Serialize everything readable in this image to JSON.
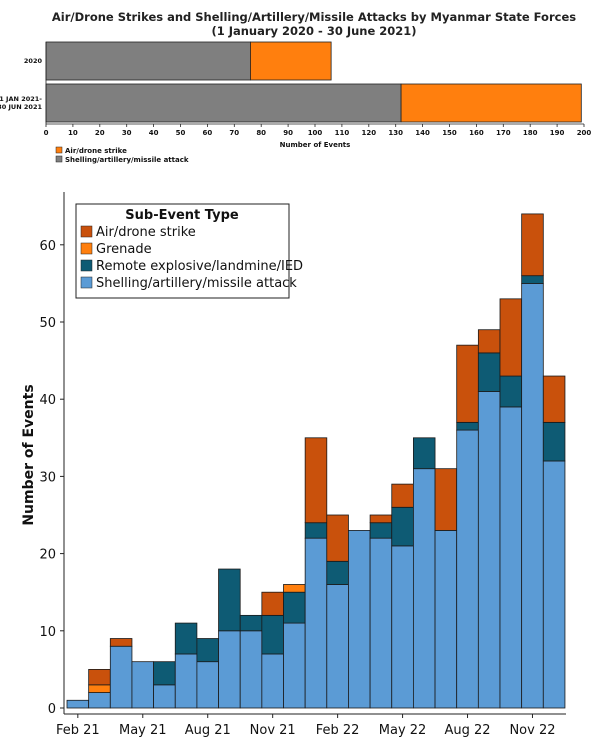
{
  "chart_data": [
    {
      "type": "bar",
      "orientation": "horizontal",
      "stacked": true,
      "title_line1": "Air/Drone Strikes and Shelling/Artillery/Missile Attacks by Myanmar State Forces",
      "title_line2": "(1 January 2020 - 30 June 2021)",
      "xlabel": "Number of Events",
      "xlim": [
        0,
        200
      ],
      "xticks": [
        0,
        10,
        20,
        30,
        40,
        50,
        60,
        70,
        80,
        90,
        100,
        110,
        120,
        130,
        140,
        150,
        160,
        170,
        180,
        190,
        200
      ],
      "categories": [
        "2020",
        "1 JAN 2021-30 JUN 2021"
      ],
      "category_lines": [
        [
          "2020"
        ],
        [
          "1 JAN 2021-",
          "30 JUN 2021"
        ]
      ],
      "series": [
        {
          "name": "Shelling/artillery/missile attack",
          "color": "#7f7f7f",
          "values": [
            76,
            132
          ]
        },
        {
          "name": "Air/drone strike",
          "color": "#ff7f0e",
          "values": [
            30,
            67
          ]
        }
      ],
      "legend": [
        "Air/drone strike",
        "Shelling/artillery/missile attack"
      ],
      "legend_position": "bottom-left"
    },
    {
      "type": "bar",
      "stacked": true,
      "ylabel": "Number of Events",
      "ylim": [
        0,
        68
      ],
      "yticks": [
        0,
        10,
        20,
        30,
        40,
        50,
        60
      ],
      "x_tick_labels": [
        "Feb 21",
        "May 21",
        "Aug 21",
        "Nov 21",
        "Feb 22",
        "May 22",
        "Aug 22",
        "Nov 22"
      ],
      "x_tick_month_index": [
        0,
        3,
        6,
        9,
        12,
        15,
        18,
        21
      ],
      "months": [
        "Feb 21",
        "Mar 21",
        "Apr 21",
        "May 21",
        "Jun 21",
        "Jul 21",
        "Aug 21",
        "Sep 21",
        "Oct 21",
        "Nov 21",
        "Dec 21",
        "Jan 22",
        "Feb 22",
        "Mar 22",
        "Apr 22",
        "May 22",
        "Jun 22",
        "Jul 22",
        "Aug 22",
        "Sep 22",
        "Oct 22",
        "Nov 22",
        "Dec 22"
      ],
      "legend_title": "Sub-Event Type",
      "legend_position": "top-left",
      "series": [
        {
          "name": "Shelling/artillery/missile attack",
          "color": "#5b9bd5",
          "values": [
            1,
            2,
            8,
            6,
            3,
            7,
            6,
            10,
            10,
            7,
            11,
            22,
            16,
            23,
            22,
            21,
            31,
            23,
            36,
            41,
            39,
            55,
            32
          ]
        },
        {
          "name": "Remote explosive/landmine/IED",
          "color": "#0e5b74",
          "values": [
            0,
            0,
            0,
            0,
            3,
            4,
            3,
            8,
            2,
            5,
            4,
            2,
            3,
            0,
            2,
            5,
            4,
            0,
            1,
            5,
            4,
            1,
            5
          ]
        },
        {
          "name": "Grenade",
          "color": "#ff7f0e",
          "values": [
            0,
            1,
            0,
            0,
            0,
            0,
            0,
            0,
            0,
            0,
            1,
            0,
            0,
            0,
            0,
            0,
            0,
            0,
            0,
            0,
            0,
            0,
            0
          ]
        },
        {
          "name": "Air/drone strike",
          "color": "#c9510c",
          "values": [
            0,
            2,
            1,
            0,
            0,
            0,
            0,
            0,
            0,
            3,
            0,
            11,
            6,
            0,
            1,
            3,
            0,
            8,
            10,
            3,
            10,
            8,
            6
          ]
        }
      ],
      "legend": [
        "Air/drone strike",
        "Grenade",
        "Remote explosive/landmine/IED",
        "Shelling/artillery/missile attack"
      ]
    }
  ]
}
